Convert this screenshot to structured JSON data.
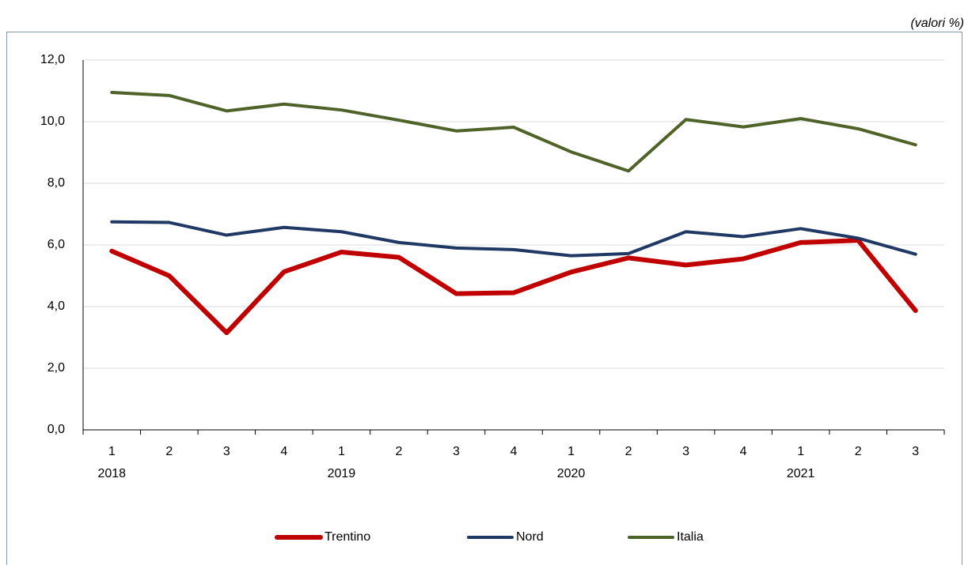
{
  "chart_data": {
    "type": "line",
    "unit_note": "(valori %)",
    "categories": [
      "1",
      "2",
      "3",
      "4",
      "1",
      "2",
      "3",
      "4",
      "1",
      "2",
      "3",
      "4",
      "1",
      "2",
      "3"
    ],
    "category_groups": [
      "2018",
      null,
      null,
      null,
      "2019",
      null,
      null,
      null,
      "2020",
      null,
      null,
      null,
      "2021",
      null,
      null
    ],
    "series": [
      {
        "name": "Trentino",
        "color": "#c00000",
        "values": [
          5.8,
          5.0,
          3.15,
          5.13,
          5.77,
          5.6,
          4.42,
          4.45,
          5.12,
          5.58,
          5.35,
          5.55,
          6.08,
          6.15,
          3.87
        ]
      },
      {
        "name": "Nord",
        "color": "#1f3864",
        "values": [
          6.75,
          6.73,
          6.32,
          6.57,
          6.43,
          6.08,
          5.9,
          5.85,
          5.65,
          5.72,
          6.43,
          6.27,
          6.53,
          6.22,
          5.7
        ]
      },
      {
        "name": "Italia",
        "color": "#4f6228",
        "values": [
          10.95,
          10.85,
          10.35,
          10.57,
          10.38,
          10.05,
          9.7,
          9.82,
          9.02,
          8.4,
          10.07,
          9.83,
          10.1,
          9.77,
          9.25
        ]
      }
    ],
    "ylim": [
      0,
      12
    ],
    "yticks": [
      {
        "value": 0,
        "label": "0,0"
      },
      {
        "value": 2,
        "label": "2,0"
      },
      {
        "value": 4,
        "label": "4,0"
      },
      {
        "value": 6,
        "label": "6,0"
      },
      {
        "value": 8,
        "label": "8,0"
      },
      {
        "value": 10,
        "label": "10,0"
      },
      {
        "value": 12,
        "label": "12,0"
      }
    ],
    "grid": true,
    "legend": "bottom"
  }
}
